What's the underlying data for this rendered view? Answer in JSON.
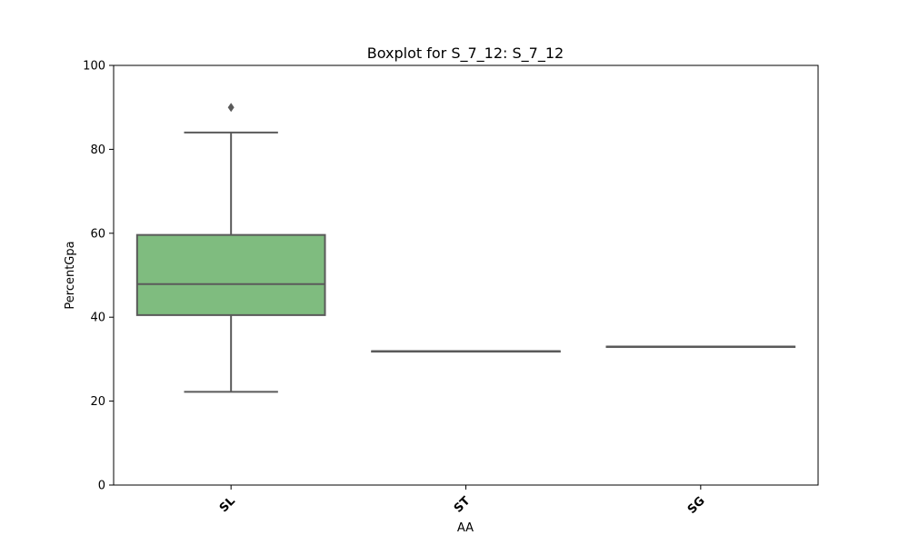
{
  "chart_data": {
    "type": "boxplot",
    "title": "Boxplot for S_7_12: S_7_12",
    "xlabel": "AA",
    "ylabel": "PercentGpa",
    "ylim": [
      0,
      100
    ],
    "yticks": [
      0,
      20,
      40,
      60,
      80,
      100
    ],
    "grid": false,
    "categories": [
      "SL",
      "ST",
      "SG"
    ],
    "boxes": [
      {
        "category": "SL",
        "whisker_low": 22.2,
        "q1": 40.5,
        "median": 47.9,
        "q3": 59.6,
        "whisker_high": 84.0,
        "outliers": [
          90.0
        ],
        "color": "#7fbc7f"
      },
      {
        "category": "ST",
        "whisker_low": 31.9,
        "q1": 31.9,
        "median": 31.9,
        "q3": 31.9,
        "whisker_high": 31.9,
        "outliers": [],
        "color": "#7fbc7f"
      },
      {
        "category": "SG",
        "whisker_low": 33.0,
        "q1": 33.0,
        "median": 33.0,
        "q3": 33.0,
        "whisker_high": 33.0,
        "outliers": [],
        "color": "#7fbc7f"
      }
    ],
    "colors": {
      "box_fill": "#7fbc7f",
      "line": "#5a5a5a",
      "axis": "#000000"
    }
  }
}
